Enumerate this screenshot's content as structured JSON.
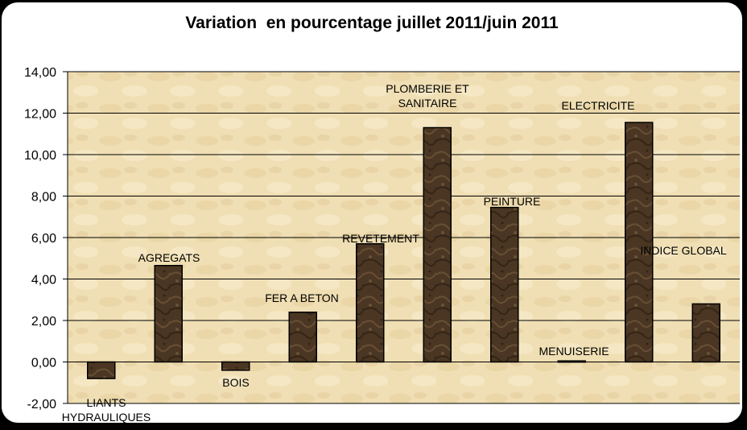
{
  "chart_data": {
    "type": "bar",
    "title": "Variation  en pourcentage juillet 2011/juin 2011",
    "categories": [
      "LIANTS HYDRAULIQUES",
      "AGREGATS",
      "BOIS",
      "FER A BETON",
      "REVETEMENT",
      "PLOMBERIE ET SANITAIRE",
      "PEINTURE",
      "MENUISERIE",
      "ELECTRICITE",
      "INDICE GLOBAL"
    ],
    "category_label_lines": [
      [
        "LIANTS",
        "HYDRAULIQUES"
      ],
      [
        "AGREGATS"
      ],
      [
        "BOIS"
      ],
      [
        "FER A BETON"
      ],
      [
        "REVETEMENT"
      ],
      [
        "PLOMBERIE  ET",
        "SANITAIRE"
      ],
      [
        "PEINTURE"
      ],
      [
        "MENUISERIE"
      ],
      [
        "ELECTRICITE"
      ],
      [
        "INDICE GLOBAL"
      ]
    ],
    "values": [
      -0.8,
      4.65,
      -0.4,
      2.4,
      5.7,
      11.3,
      7.45,
      0.05,
      11.55,
      2.8
    ],
    "ylim": [
      -2,
      14
    ],
    "yticks": [
      "-2,00",
      "0,00",
      "2,00",
      "4,00",
      "6,00",
      "8,00",
      "10,00",
      "12,00",
      "14,00"
    ],
    "grid": true,
    "legend": "none",
    "colors": {
      "bar_fill": "#4a3622",
      "bar_edge": "#000000",
      "plot_bg": "#f0dfb4",
      "grid": "#000000"
    }
  }
}
